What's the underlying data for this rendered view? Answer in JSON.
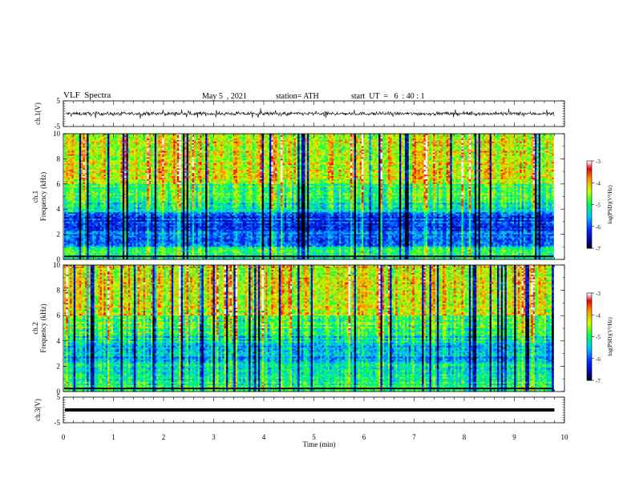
{
  "header": {
    "title": "VLF  Spectra",
    "date": "May 5  , 2021",
    "station": "station= ATH",
    "start": "start  UT  =   6  : 40 : 1"
  },
  "chart_data": [
    {
      "type": "line",
      "name": "ch1-waveform",
      "ylabel": "ch.1(V)",
      "y_ticks": [
        "5",
        "-5"
      ],
      "ylim": [
        -5,
        5
      ],
      "xlim": [
        0,
        10
      ],
      "data_extent_min": 9.8
    },
    {
      "type": "heatmap",
      "name": "ch1-spectrogram",
      "ylabel_line1": "ch.1",
      "ylabel_line2": "Frequency  (kHz)",
      "y_ticks": [
        "0",
        "2",
        "4",
        "6",
        "8",
        "10"
      ],
      "ylim": [
        0,
        10
      ],
      "xlim": [
        0,
        10
      ],
      "data_extent_min": 9.8,
      "colorbar": {
        "label": "log(PSD)(V²/Hz)",
        "ticks": [
          "-3",
          "-4",
          "-5",
          "-6",
          "-7"
        ],
        "range": [
          -7,
          -3
        ]
      }
    },
    {
      "type": "heatmap",
      "name": "ch2-spectrogram",
      "ylabel_line1": "ch.2",
      "ylabel_line2": "Frequency  (kHz)",
      "y_ticks": [
        "0",
        "2",
        "4",
        "6",
        "8",
        "10"
      ],
      "ylim": [
        0,
        10
      ],
      "xlim": [
        0,
        10
      ],
      "data_extent_min": 9.8,
      "colorbar": {
        "label": "log(PSD)(V²/Hz)",
        "ticks": [
          "-3",
          "-4",
          "-5",
          "-6",
          "-7"
        ],
        "range": [
          -7,
          -3
        ]
      }
    },
    {
      "type": "line",
      "name": "ch3-waveform",
      "ylabel": "ch.3(V)",
      "y_ticks": [
        "5",
        "-5"
      ],
      "ylim": [
        -5,
        5
      ],
      "xlim": [
        0,
        10
      ],
      "constant_value": 0,
      "data_extent_min": 9.8
    }
  ],
  "x_axis": {
    "label": "Time  (min)",
    "ticks": [
      "0",
      "1",
      "2",
      "3",
      "4",
      "5",
      "6",
      "7",
      "8",
      "9",
      "10"
    ]
  }
}
